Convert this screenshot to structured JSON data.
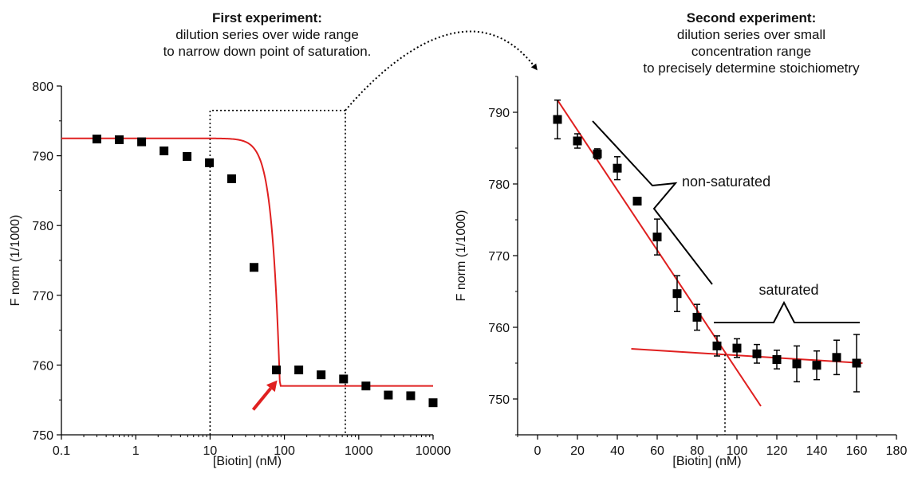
{
  "headings": {
    "left": {
      "title": "First experiment:",
      "lines": [
        "dilution series over wide range",
        "to narrow down point of saturation."
      ]
    },
    "right": {
      "title": "Second experiment:",
      "lines": [
        "dilution series over small",
        "concentration range",
        "to precisely determine stoichiometry"
      ]
    }
  },
  "annotations": {
    "non_saturated": "non-saturated",
    "saturated": "saturated"
  },
  "colors": {
    "fit": "#e02020",
    "marker": "#000000",
    "axis": "#000000"
  },
  "chart_data": [
    {
      "type": "scatter",
      "title": "",
      "xlabel": "[Biotin] (nM)",
      "ylabel": "F norm (1/1000)",
      "xscale": "log",
      "xlim": [
        0.1,
        10000
      ],
      "ylim": [
        750,
        800
      ],
      "xticks": [
        0.1,
        1,
        10,
        100,
        1000,
        10000
      ],
      "xtick_labels": [
        "0.1",
        "1",
        "10",
        "100",
        "1000",
        "10000"
      ],
      "yticks": [
        750,
        760,
        770,
        780,
        790,
        800
      ],
      "ytick_labels": [
        "750",
        "760",
        "770",
        "780",
        "790",
        "800"
      ],
      "points": [
        {
          "x": 0.3,
          "y": 792.4
        },
        {
          "x": 0.6,
          "y": 792.3
        },
        {
          "x": 1.2,
          "y": 792.0
        },
        {
          "x": 2.4,
          "y": 790.7
        },
        {
          "x": 4.9,
          "y": 789.9
        },
        {
          "x": 9.8,
          "y": 789.0
        },
        {
          "x": 19.5,
          "y": 786.7
        },
        {
          "x": 39,
          "y": 774.0
        },
        {
          "x": 78,
          "y": 759.3
        },
        {
          "x": 156,
          "y": 759.3
        },
        {
          "x": 312,
          "y": 758.6
        },
        {
          "x": 625,
          "y": 758.0
        },
        {
          "x": 1250,
          "y": 757.0
        },
        {
          "x": 2500,
          "y": 755.7
        },
        {
          "x": 5000,
          "y": 755.6
        },
        {
          "x": 10000,
          "y": 754.6
        }
      ],
      "fit": {
        "top": 792.5,
        "bottom": 757.0,
        "saturation_x": 87
      },
      "selection_box": {
        "xmin": 10,
        "xmax": 660,
        "ymin": 750,
        "ymax": 796.5
      },
      "arrow": {
        "from": {
          "x": 38,
          "y": 753.6
        },
        "to": {
          "x": 80,
          "y": 757.8
        }
      }
    },
    {
      "type": "scatter",
      "title": "",
      "xlabel": "[Biotin] (nM)",
      "ylabel": "F norm (1/1000)",
      "xlim": [
        -10,
        180
      ],
      "ylim": [
        745,
        795
      ],
      "xticks": [
        0,
        20,
        40,
        60,
        80,
        100,
        120,
        140,
        160,
        180
      ],
      "xtick_labels": [
        "0",
        "20",
        "40",
        "60",
        "80",
        "100",
        "120",
        "140",
        "160",
        "180"
      ],
      "yticks": [
        750,
        760,
        770,
        780,
        790
      ],
      "ytick_labels": [
        "750",
        "760",
        "770",
        "780",
        "790"
      ],
      "points": [
        {
          "x": 10,
          "y": 789.0,
          "err": 2.7
        },
        {
          "x": 20,
          "y": 786.0,
          "err": 1.0
        },
        {
          "x": 30,
          "y": 784.2,
          "err": 0.7
        },
        {
          "x": 40,
          "y": 782.2,
          "err": 1.6
        },
        {
          "x": 50,
          "y": 777.6,
          "err": 0.4
        },
        {
          "x": 60,
          "y": 772.6,
          "err": 2.5
        },
        {
          "x": 70,
          "y": 764.7,
          "err": 2.5
        },
        {
          "x": 80,
          "y": 761.4,
          "err": 1.8
        },
        {
          "x": 90,
          "y": 757.4,
          "err": 1.4
        },
        {
          "x": 100,
          "y": 757.1,
          "err": 1.3
        },
        {
          "x": 110,
          "y": 756.3,
          "err": 1.3
        },
        {
          "x": 120,
          "y": 755.5,
          "err": 1.3
        },
        {
          "x": 130,
          "y": 754.9,
          "err": 2.5
        },
        {
          "x": 140,
          "y": 754.7,
          "err": 2.0
        },
        {
          "x": 150,
          "y": 755.8,
          "err": 2.4
        },
        {
          "x": 160,
          "y": 755.0,
          "err": 4.0
        }
      ],
      "fit_lines": [
        {
          "x": [
            10,
            112
          ],
          "y": [
            791.7,
            749.0
          ]
        },
        {
          "x": [
            47,
            163
          ],
          "y": [
            757.0,
            755.0
          ]
        }
      ],
      "intersection_x": 94
    }
  ]
}
